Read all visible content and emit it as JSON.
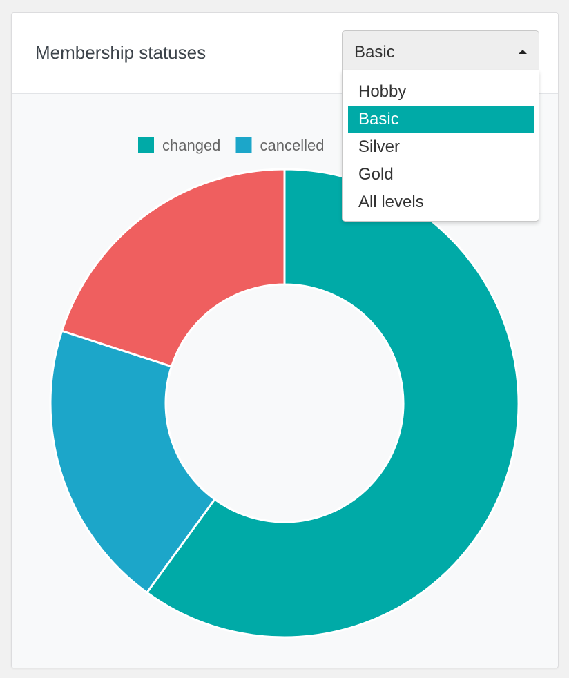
{
  "card": {
    "title": "Membership statuses"
  },
  "select": {
    "value": "Basic",
    "options": [
      "Hobby",
      "Basic",
      "Silver",
      "Gold",
      "All levels"
    ],
    "selected_index": 1
  },
  "colors": {
    "changed": "#00aaa7",
    "cancelled": "#1ca6c9",
    "third": "#ef5f5f",
    "selected_option": "#00aaa7"
  },
  "chart_data": {
    "type": "pie",
    "style": "doughnut",
    "legend_position": "top",
    "series": [
      {
        "name": "changed",
        "value": 60,
        "color": "#00aaa7"
      },
      {
        "name": "cancelled",
        "value": 20,
        "color": "#1ca6c9"
      },
      {
        "name": "",
        "value": 20,
        "color": "#ef5f5f"
      }
    ]
  }
}
